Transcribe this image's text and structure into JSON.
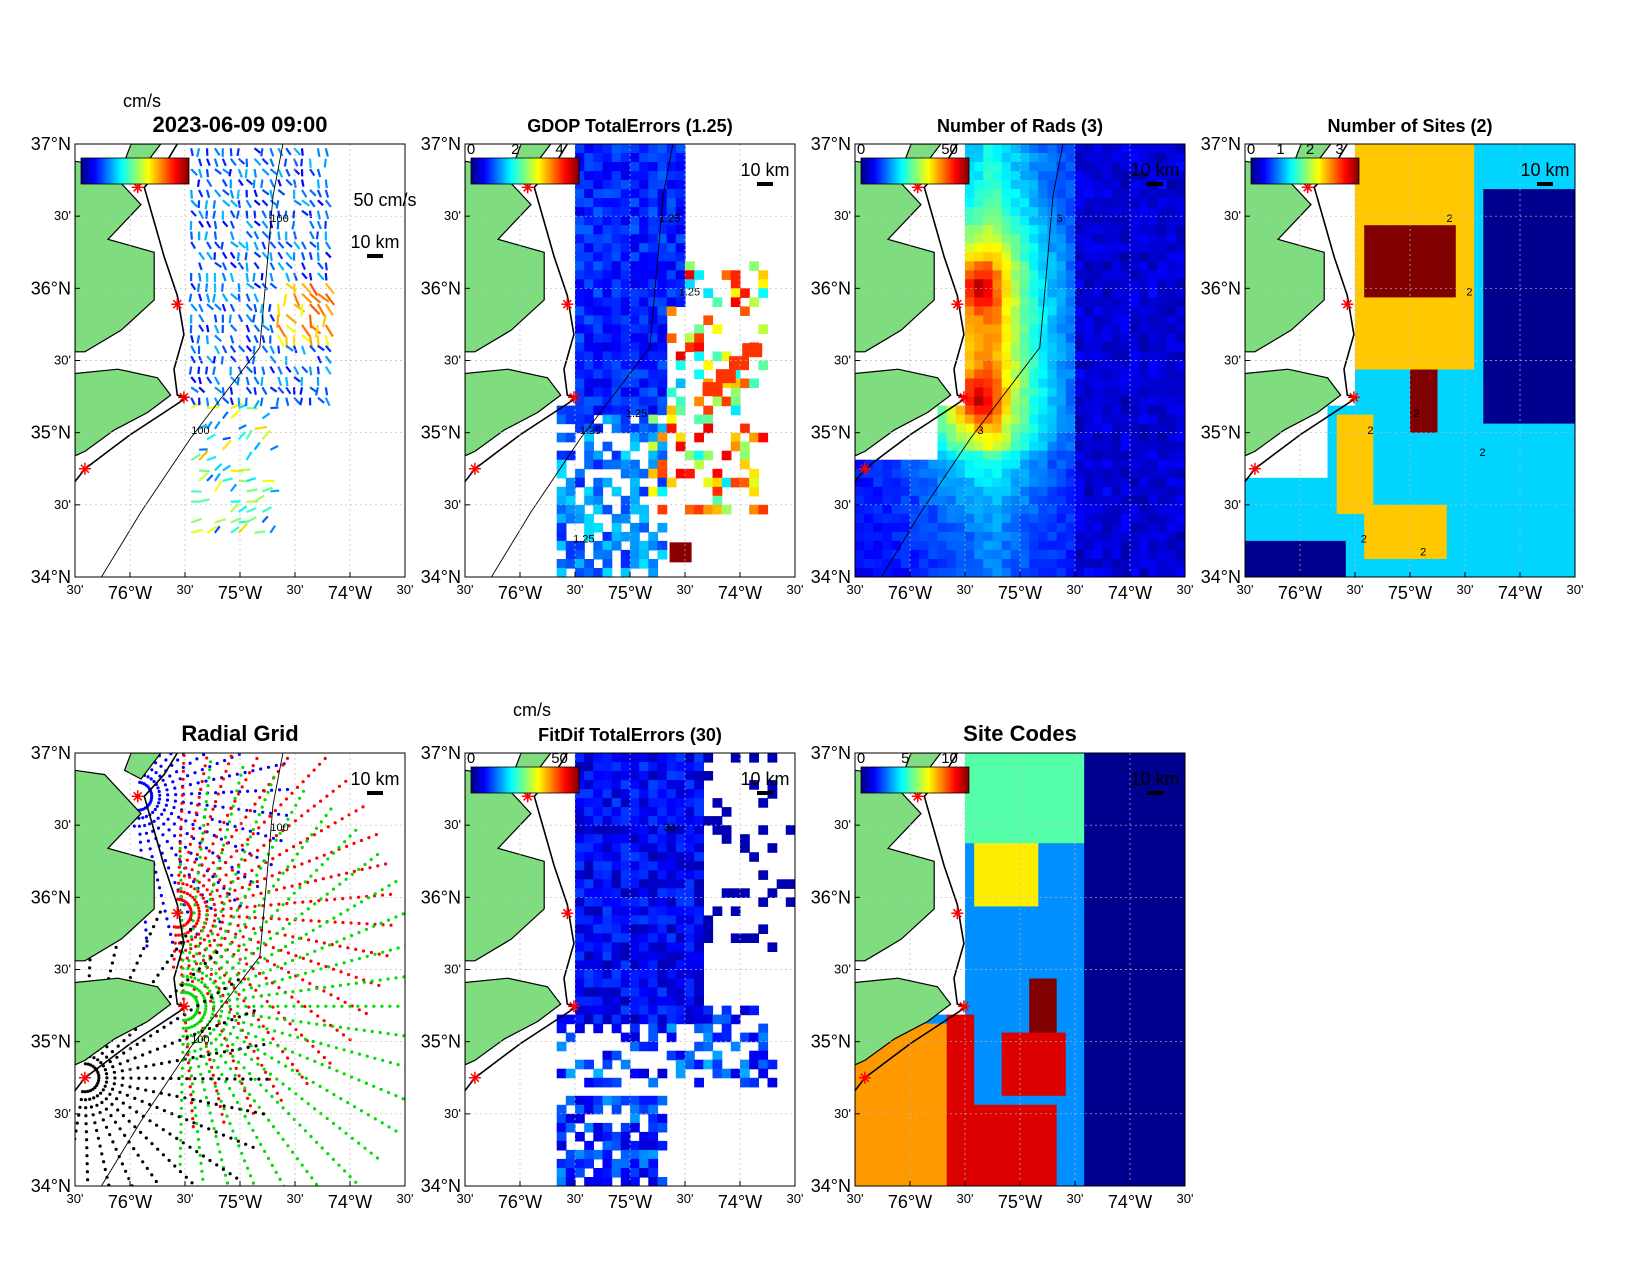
{
  "figure": {
    "colors": {
      "land": "#7fdc7f",
      "coast": "#000000",
      "site_marker": "#ff0000",
      "grid": "#bbbbbb",
      "site_blue": "#0000ff",
      "site_red": "#ff0000",
      "site_green": "#00dd00",
      "site_black": "#000000"
    },
    "axis_ticks": {
      "y": [
        "37°N",
        "30'",
        "36°N",
        "30'",
        "35°N",
        "30'",
        "34°N"
      ],
      "x": [
        "30'",
        "76°W",
        "30'",
        "75°W",
        "30'",
        "74°W",
        "30'"
      ]
    },
    "scale_bar_label": "10 km",
    "panels": [
      {
        "id": "currents",
        "title": "2023-06-09 09:00",
        "field": "vectors",
        "colorbar_unit": "cm/s",
        "colorbar_ticks": [],
        "vector_scale_label": "50 cm/s",
        "contour_labels": [
          "100",
          "100"
        ]
      },
      {
        "id": "gdop",
        "title": "GDOP TotalErrors (1.25)",
        "field": "gdop",
        "colorbar_unit": "",
        "colorbar_ticks": [
          "0",
          "2",
          "4"
        ],
        "contour_labels": [
          "1.25",
          "1.25",
          "1.25",
          "1.25",
          "1.25"
        ]
      },
      {
        "id": "nrads",
        "title": "Number of Rads (3)",
        "field": "nrads",
        "colorbar_unit": "",
        "colorbar_ticks": [
          "0",
          "50"
        ],
        "contour_labels": [
          "3",
          "3",
          "3"
        ]
      },
      {
        "id": "nsites",
        "title": "Number of Sites (2)",
        "field": "nsites",
        "colorbar_unit": "",
        "colorbar_ticks": [
          "0",
          "1",
          "2",
          "3"
        ],
        "contour_labels": [
          "2",
          "2",
          "2",
          "2",
          "2",
          "2",
          "2"
        ]
      },
      {
        "id": "radgrid",
        "title": "Radial Grid",
        "field": "radial",
        "colorbar_unit": "",
        "colorbar_ticks": [],
        "contour_labels": [
          "100",
          "100"
        ]
      },
      {
        "id": "fitdif",
        "title": "FitDif TotalErrors (30)",
        "field": "fitdif",
        "colorbar_unit": "cm/s",
        "colorbar_ticks": [
          "0",
          "50"
        ],
        "contour_labels": [
          "30"
        ]
      },
      {
        "id": "sitecodes",
        "title": "Site Codes",
        "field": "sitecodes",
        "colorbar_unit": "",
        "colorbar_ticks": [
          "0",
          "5",
          "10"
        ],
        "contour_labels": []
      }
    ]
  }
}
